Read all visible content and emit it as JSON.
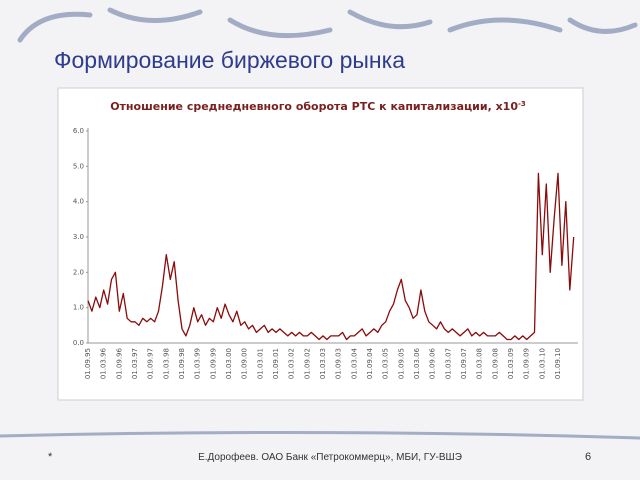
{
  "slide_title": "Формирование биржевого рынка",
  "footer": {
    "left": "*",
    "center": "Е.Дорофеев. ОАО Банк «Петрокоммерц», МБИ, ГУ-ВШЭ",
    "page": "6"
  },
  "chart_data": {
    "type": "line",
    "title": "Отношение среднедневного оборота РТС к капитализации, х10",
    "title_exponent": "-3",
    "color": "#8b0a0a",
    "grid": false,
    "ylim": [
      0,
      6
    ],
    "yticks": [
      {
        "value": 0,
        "label": "0.0"
      },
      {
        "value": 1,
        "label": "1.0"
      },
      {
        "value": 2,
        "label": "2.0"
      },
      {
        "value": 3,
        "label": "3.0"
      },
      {
        "value": 4,
        "label": "4.0"
      },
      {
        "value": 5,
        "label": "5.0"
      },
      {
        "value": 6,
        "label": "6.0"
      }
    ],
    "categories": [
      "01.09.95",
      null,
      null,
      null,
      "01.03.96",
      null,
      null,
      null,
      "01.09.96",
      null,
      null,
      null,
      "01.03.97",
      null,
      null,
      null,
      "01.09.97",
      null,
      null,
      null,
      "01.03.98",
      null,
      null,
      null,
      "01.09.98",
      null,
      null,
      null,
      "01.03.99",
      null,
      null,
      null,
      "01.09.99",
      null,
      null,
      null,
      "01.03.00",
      null,
      null,
      null,
      "01.09.00",
      null,
      null,
      null,
      "01.03.01",
      null,
      null,
      null,
      "01.09.01",
      null,
      null,
      null,
      "01.03.02",
      null,
      null,
      null,
      "01.09.02",
      null,
      null,
      null,
      "01.03.03",
      null,
      null,
      null,
      "01.09.03",
      null,
      null,
      null,
      "01.03.04",
      null,
      null,
      null,
      "01.09.04",
      null,
      null,
      null,
      "01.03.05",
      null,
      null,
      null,
      "01.09.05",
      null,
      null,
      null,
      "01.03.06",
      null,
      null,
      null,
      "01.09.06",
      null,
      null,
      null,
      "01.03.07",
      null,
      null,
      null,
      "01.09.07",
      null,
      null,
      null,
      "01.03.08",
      null,
      null,
      null,
      "01.09.08",
      null,
      null,
      null,
      "01.03.09",
      null,
      null,
      null,
      "01.09.09",
      null,
      null,
      null,
      "01.03.10",
      null,
      null,
      null,
      "01.09.10",
      null,
      null,
      null,
      null
    ],
    "values": [
      1.2,
      0.9,
      1.3,
      1.0,
      1.5,
      1.1,
      1.8,
      2.0,
      0.9,
      1.4,
      0.7,
      0.6,
      0.6,
      0.5,
      0.7,
      0.6,
      0.7,
      0.6,
      0.9,
      1.6,
      2.5,
      1.8,
      2.3,
      1.2,
      0.4,
      0.2,
      0.5,
      1.0,
      0.6,
      0.8,
      0.5,
      0.7,
      0.6,
      1.0,
      0.7,
      1.1,
      0.8,
      0.6,
      0.9,
      0.5,
      0.6,
      0.4,
      0.5,
      0.3,
      0.4,
      0.5,
      0.3,
      0.4,
      0.3,
      0.4,
      0.3,
      0.2,
      0.3,
      0.2,
      0.3,
      0.2,
      0.2,
      0.3,
      0.2,
      0.1,
      0.2,
      0.1,
      0.2,
      0.2,
      0.2,
      0.3,
      0.1,
      0.2,
      0.2,
      0.3,
      0.4,
      0.2,
      0.3,
      0.4,
      0.3,
      0.5,
      0.6,
      0.9,
      1.1,
      1.5,
      1.8,
      1.2,
      1.0,
      0.7,
      0.8,
      1.5,
      0.9,
      0.6,
      0.5,
      0.4,
      0.6,
      0.4,
      0.3,
      0.4,
      0.3,
      0.2,
      0.3,
      0.4,
      0.2,
      0.3,
      0.2,
      0.3,
      0.2,
      0.2,
      0.2,
      0.3,
      0.2,
      0.1,
      0.1,
      0.2,
      0.1,
      0.2,
      0.1,
      0.2,
      0.3,
      4.8,
      2.5,
      4.5,
      2.0,
      3.5,
      4.8,
      2.2,
      4.0,
      1.5,
      3.0
    ]
  }
}
